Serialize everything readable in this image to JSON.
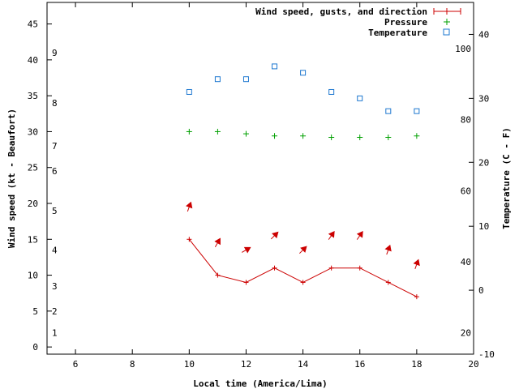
{
  "chart_data": {
    "type": "line",
    "xlabel": "Local time (America/Lima)",
    "ylabel_left": "Wind speed (kt - Beaufort)",
    "ylabel_right": "Temperature (C - F)",
    "xlim": [
      5,
      20
    ],
    "x_ticks": [
      6,
      8,
      10,
      12,
      14,
      16,
      18,
      20
    ],
    "ylim_left": [
      -1,
      48
    ],
    "y_ticks_left": [
      0,
      5,
      10,
      15,
      20,
      25,
      30,
      35,
      40,
      45
    ],
    "ylim_right_c": [
      -10,
      45
    ],
    "y_ticks_right_c": [
      -10,
      0,
      10,
      20,
      30,
      40
    ],
    "y_ticks_right_f": [
      20,
      40,
      60,
      80,
      100
    ],
    "beaufort_labels": [
      {
        "label": "1",
        "kt": 2
      },
      {
        "label": "2",
        "kt": 5
      },
      {
        "label": "3",
        "kt": 8.5
      },
      {
        "label": "4",
        "kt": 13.5
      },
      {
        "label": "5",
        "kt": 19
      },
      {
        "label": "6",
        "kt": 24.5
      },
      {
        "label": "7",
        "kt": 28
      },
      {
        "label": "8",
        "kt": 34
      },
      {
        "label": "9",
        "kt": 41
      }
    ],
    "legend": [
      {
        "label": "Wind speed, gusts, and direction",
        "color": "#cc0000"
      },
      {
        "label": "Pressure",
        "color": "#00a000"
      },
      {
        "label": "Temperature",
        "color": "#1e78d0"
      }
    ],
    "series": [
      {
        "name": "Wind speed",
        "x": [
          10,
          11,
          12,
          13,
          14,
          15,
          16,
          17,
          18
        ],
        "values": [
          15,
          10,
          9,
          11,
          9,
          11,
          11,
          9,
          7
        ],
        "color": "#cc0000"
      },
      {
        "name": "Pressure",
        "axis": "left",
        "x": [
          10,
          11,
          12,
          13,
          14,
          15,
          16,
          17,
          18
        ],
        "values": [
          30,
          30,
          29.7,
          29.4,
          29.4,
          29.2,
          29.2,
          29.2,
          29.4
        ],
        "color": "#00a000"
      },
      {
        "name": "Temperature",
        "axis": "right",
        "x": [
          10,
          11,
          12,
          13,
          14,
          15,
          16,
          17,
          18
        ],
        "values": [
          31,
          33,
          33,
          35,
          34,
          31,
          30,
          28,
          28
        ],
        "color": "#1e78d0"
      }
    ],
    "wind_direction": {
      "x": [
        10,
        11,
        12,
        13,
        14,
        15,
        16,
        17,
        18
      ],
      "direction_deg": [
        200,
        210,
        240,
        225,
        225,
        215,
        215,
        200,
        200
      ]
    }
  }
}
